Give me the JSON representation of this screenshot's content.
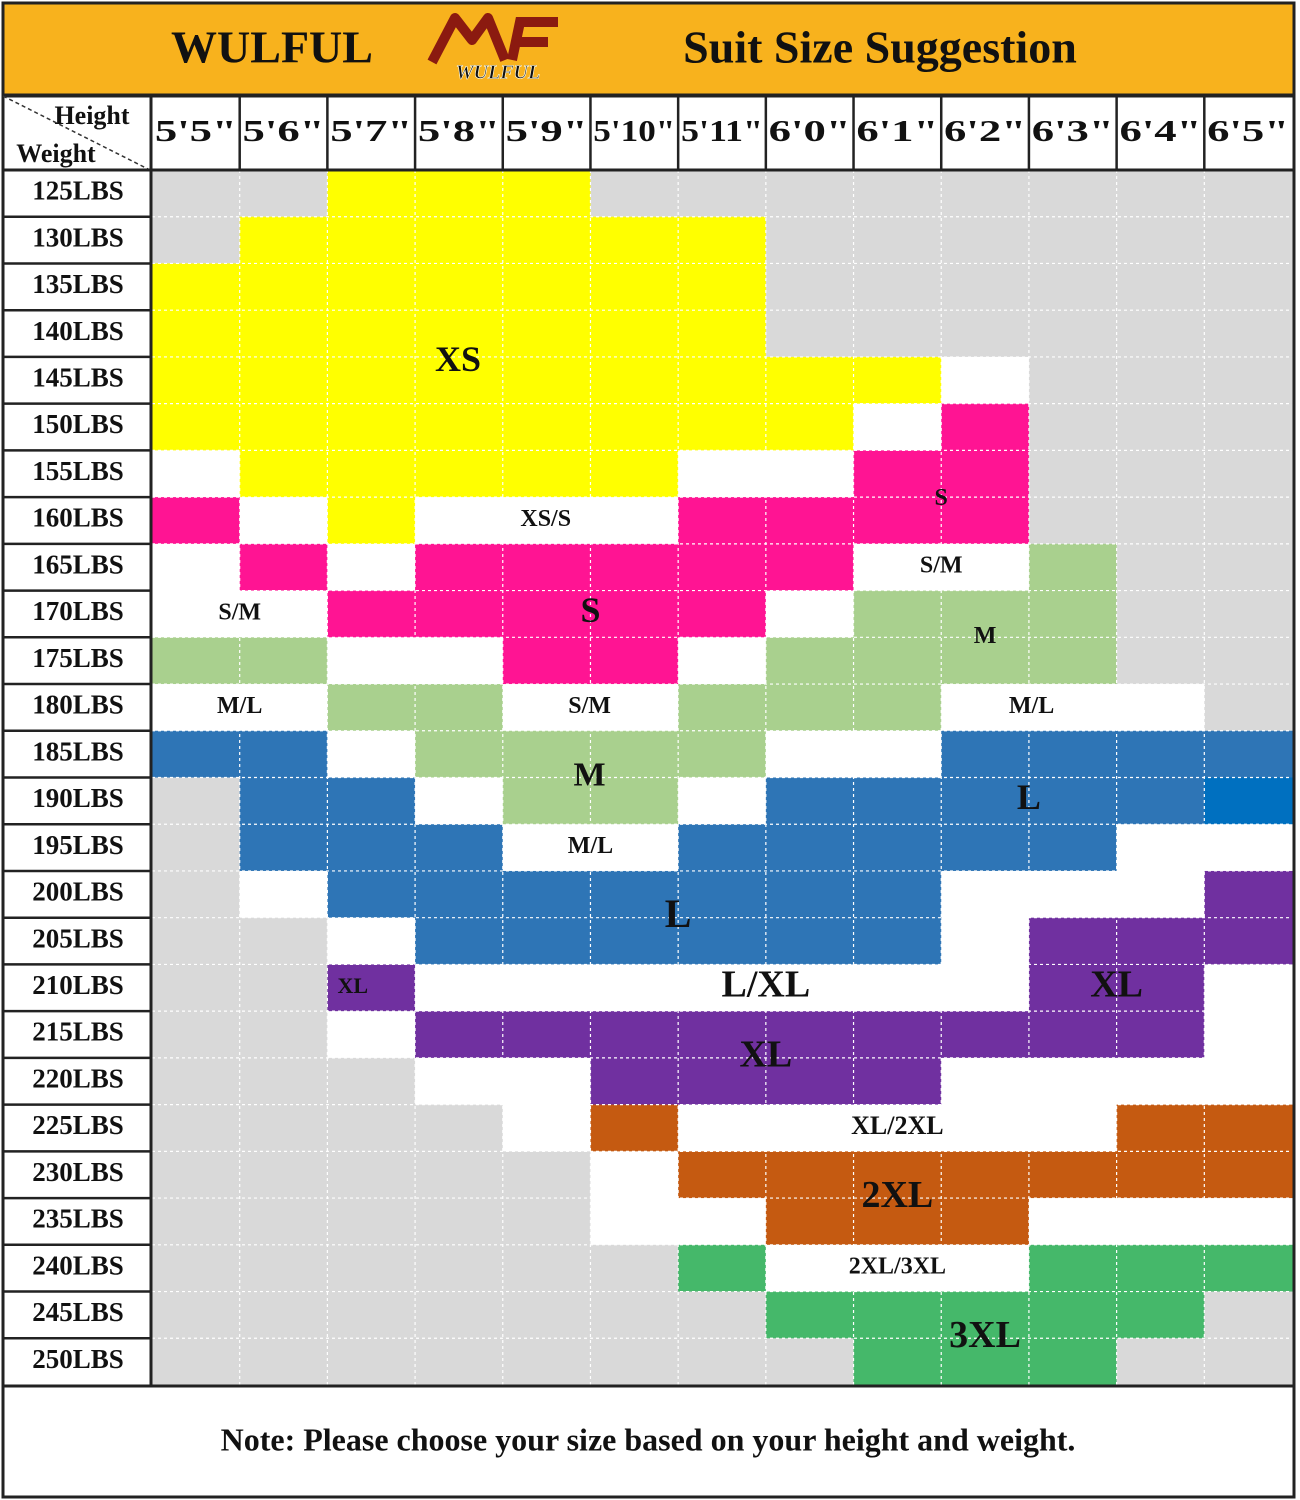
{
  "header": {
    "brand": "WULFUL",
    "logo_text": "WULFUL",
    "title": "Suit Size Suggestion"
  },
  "table": {
    "corner": {
      "height": "Height",
      "weight": "Weight"
    },
    "columns": [
      "5'5\"",
      "5'6\"",
      "5'7\"",
      "5'8\"",
      "5'9\"",
      "5'10\"",
      "5'11\"",
      "6'0\"",
      "6'1\"",
      "6'2\"",
      "6'3\"",
      "6'4\"",
      "6'5\""
    ],
    "rows": [
      "125LBS",
      "130LBS",
      "135LBS",
      "140LBS",
      "145LBS",
      "150LBS",
      "155LBS",
      "160LBS",
      "165LBS",
      "170LBS",
      "175LBS",
      "180LBS",
      "185LBS",
      "190LBS",
      "195LBS",
      "200LBS",
      "205LBS",
      "210LBS",
      "215LBS",
      "220LBS",
      "225LBS",
      "230LBS",
      "235LBS",
      "240LBS",
      "245LBS",
      "250LBS"
    ],
    "size_labels": [
      "XS",
      "XS/S",
      "S",
      "S/M",
      "S",
      "S/M",
      "M",
      "M/L",
      "S/M",
      "M/L",
      "M",
      "L",
      "M/L",
      "L",
      "XL",
      "L/XL",
      "XL",
      "XL",
      "XL/2XL",
      "2XL",
      "2XL/3XL",
      "3XL"
    ]
  },
  "note": "Note: Please choose your size based on your height and weight."
}
